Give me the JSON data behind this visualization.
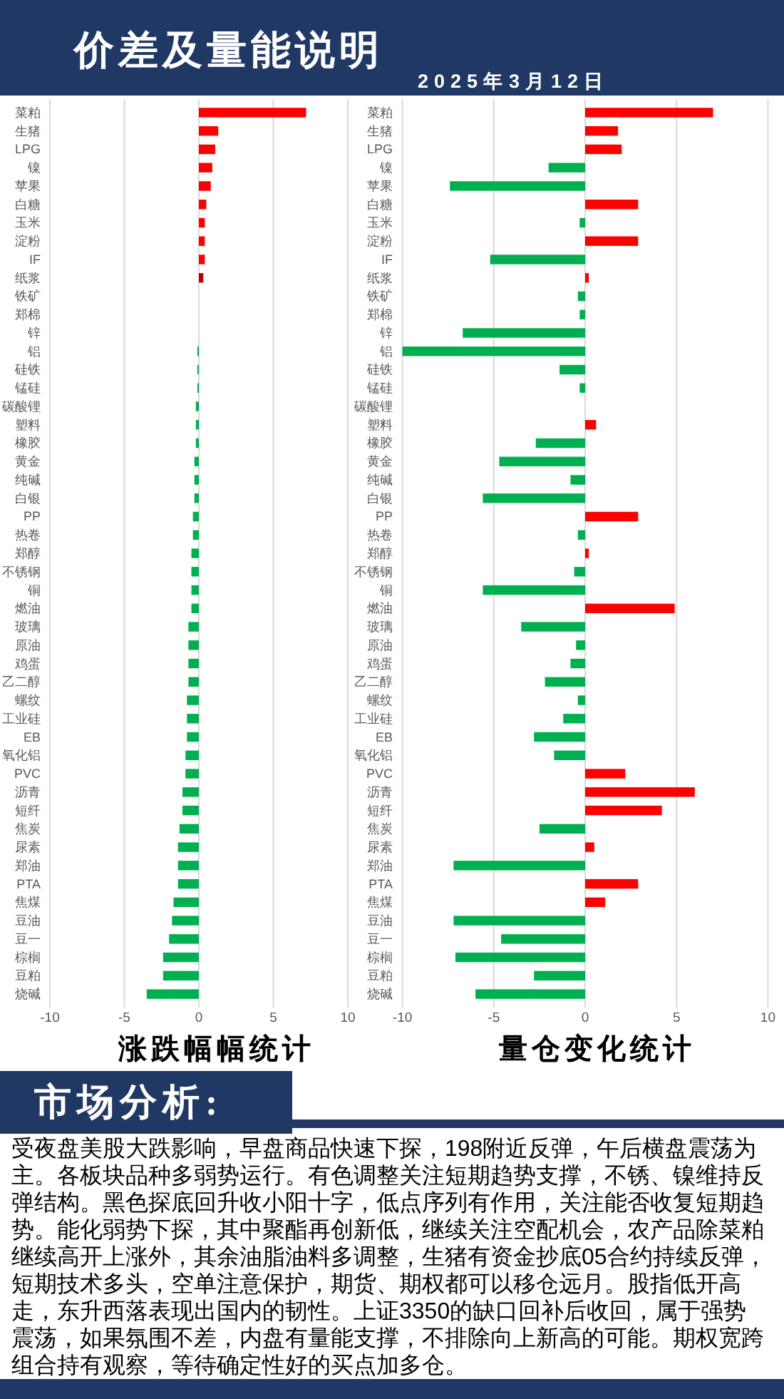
{
  "chart_data": [
    {
      "type": "other",
      "title": "价差及量能说明",
      "subtitle": "2025年3月12日"
    },
    {
      "type": "bar",
      "orientation": "horizontal",
      "title": "涨跌幅幅统计",
      "categories": [
        "菜粕",
        "生猪",
        "LPG",
        "镍",
        "苹果",
        "白糖",
        "玉米",
        "淀粉",
        "IF",
        "纸浆",
        "铁矿",
        "郑棉",
        "锌",
        "铝",
        "硅铁",
        "锰硅",
        "碳酸锂",
        "塑料",
        "橡胶",
        "黄金",
        "纯碱",
        "白银",
        "PP",
        "热卷",
        "郑醇",
        "不锈钢",
        "铜",
        "燃油",
        "玻璃",
        "原油",
        "鸡蛋",
        "乙二醇",
        "螺纹",
        "工业硅",
        "EB",
        "氧化铝",
        "PVC",
        "沥青",
        "短纤",
        "焦炭",
        "尿素",
        "郑油",
        "PTA",
        "焦煤",
        "豆油",
        "豆一",
        "棕榈",
        "豆粕",
        "烧碱"
      ],
      "values": [
        7.2,
        1.3,
        1.1,
        0.9,
        0.8,
        0.5,
        0.4,
        0.4,
        0.4,
        0.3,
        0,
        0,
        0,
        -0.1,
        -0.1,
        -0.1,
        -0.2,
        -0.2,
        -0.2,
        -0.3,
        -0.3,
        -0.3,
        -0.4,
        -0.4,
        -0.5,
        -0.5,
        -0.5,
        -0.5,
        -0.7,
        -0.7,
        -0.7,
        -0.7,
        -0.8,
        -0.8,
        -0.8,
        -0.9,
        -0.9,
        -1.1,
        -1.1,
        -1.3,
        -1.4,
        -1.4,
        -1.4,
        -1.7,
        -1.8,
        -2.0,
        -2.4,
        -2.4,
        -3.5
      ],
      "colors": [
        "#ff0000",
        "#ff0000",
        "#ff0000",
        "#ff0000",
        "#ff0000",
        "#ff0000",
        "#ff0000",
        "#ff0000",
        "#ff0000",
        "#c00000",
        null,
        null,
        null,
        "#00b050",
        "#00b050",
        "#00b050",
        "#00b050",
        "#00b050",
        "#00b050",
        "#00b050",
        "#00b050",
        "#00b050",
        "#00b050",
        "#00b050",
        "#00b050",
        "#00b050",
        "#00b050",
        "#00b050",
        "#00b050",
        "#00b050",
        "#00b050",
        "#00b050",
        "#00b050",
        "#00b050",
        "#00b050",
        "#00b050",
        "#00b050",
        "#00b050",
        "#00b050",
        "#00b050",
        "#00b050",
        "#00b050",
        "#00b050",
        "#00b050",
        "#00b050",
        "#00b050",
        "#00b050",
        "#00b050",
        "#00b050"
      ],
      "xlim": [
        -10,
        10
      ],
      "xticks": [
        -10,
        -5,
        0,
        5,
        10
      ],
      "grid": "x"
    },
    {
      "type": "bar",
      "orientation": "horizontal",
      "title": "量仓变化统计",
      "categories": [
        "菜粕",
        "生猪",
        "LPG",
        "镍",
        "苹果",
        "白糖",
        "玉米",
        "淀粉",
        "IF",
        "纸浆",
        "铁矿",
        "郑棉",
        "锌",
        "铝",
        "硅铁",
        "锰硅",
        "碳酸锂",
        "塑料",
        "橡胶",
        "黄金",
        "纯碱",
        "白银",
        "PP",
        "热卷",
        "郑醇",
        "不锈钢",
        "铜",
        "燃油",
        "玻璃",
        "原油",
        "鸡蛋",
        "乙二醇",
        "螺纹",
        "工业硅",
        "EB",
        "氧化铝",
        "PVC",
        "沥青",
        "短纤",
        "焦炭",
        "尿素",
        "郑油",
        "PTA",
        "焦煤",
        "豆油",
        "豆一",
        "棕榈",
        "豆粕",
        "烧碱"
      ],
      "values": [
        7.0,
        1.8,
        2.0,
        -2.0,
        -7.4,
        2.9,
        -0.3,
        2.9,
        -5.2,
        0.2,
        -0.4,
        -0.3,
        -6.7,
        -10.0,
        -1.4,
        -0.3,
        0,
        0.6,
        -2.7,
        -4.7,
        -0.8,
        -5.6,
        2.9,
        -0.4,
        0.2,
        -0.6,
        -5.6,
        4.9,
        -3.5,
        -0.5,
        -0.8,
        -2.2,
        -0.4,
        -1.2,
        -2.8,
        -1.7,
        2.2,
        6.0,
        4.2,
        -2.5,
        0.5,
        -7.2,
        2.9,
        1.1,
        -7.2,
        -4.6,
        -7.1,
        -2.8,
        -6.0
      ],
      "colors": [
        "#ff0000",
        "#ff0000",
        "#ff0000",
        "#00b050",
        "#00b050",
        "#ff0000",
        "#00b050",
        "#ff0000",
        "#00b050",
        "#ff0000",
        "#00b050",
        "#00b050",
        "#00b050",
        "#00b050",
        "#00b050",
        "#00b050",
        null,
        "#ff0000",
        "#00b050",
        "#00b050",
        "#00b050",
        "#00b050",
        "#ff0000",
        "#00b050",
        "#ff0000",
        "#00b050",
        "#00b050",
        "#ff0000",
        "#00b050",
        "#00b050",
        "#00b050",
        "#00b050",
        "#00b050",
        "#00b050",
        "#00b050",
        "#00b050",
        "#ff0000",
        "#ff0000",
        "#ff0000",
        "#00b050",
        "#ff0000",
        "#00b050",
        "#ff0000",
        "#ff0000",
        "#00b050",
        "#00b050",
        "#00b050",
        "#00b050",
        "#00b050"
      ],
      "xlim": [
        -10,
        10
      ],
      "xticks": [
        -10,
        -5,
        0,
        5,
        10
      ],
      "grid": "x"
    },
    {
      "type": "other",
      "title": "市场分析:",
      "annotations": [
        "受夜盘美股大跌影响，早盘商品快速下探，198附近反弹，午后横盘震荡为主。各板块品种多弱势运行。有色调整关注短期趋势支撑，不锈、镍维持反弹结构。黑色探底回升收小阳十字，低点序列有作用，关注能否收复短期趋势。能化弱势下探，其中聚酯再创新低，继续关注空配机会，农产品除菜粕继续高开上涨外，其余油脂油料多调整，生猪有资金抄底05合约持续反弹，短期技术多头，空单注意保护，期货、期权都可以移仓远月。股指低开高走，东升西落表现出国内的韧性。上证3350的缺口回补后收回，属于强势震荡，如果氛围不差，内盘有量能支撑，不排除向上新高的可能。期权宽跨组合持有观察，等待确定性好的买点加多仓。"
      ]
    }
  ]
}
